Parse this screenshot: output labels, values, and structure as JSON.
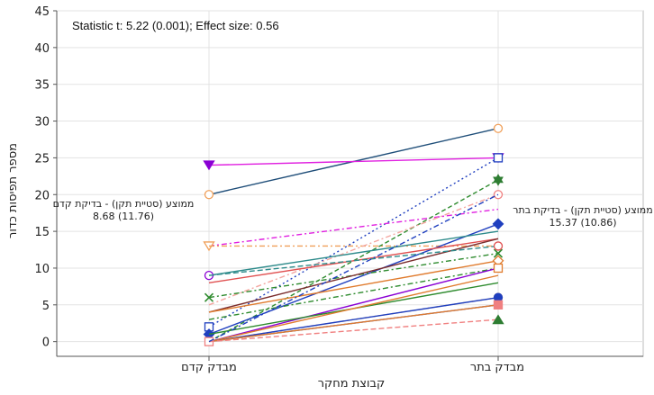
{
  "chart_data": {
    "type": "line",
    "annotation_top": "Statistic t: 5.22 (0.001); Effect size: 0.56",
    "xlabel": "קבוצת מחקר",
    "ylabel": "מספר תפיסות כדור",
    "categories": [
      "מבדק קדם",
      "מבדק בתר"
    ],
    "ylim": [
      -2,
      45
    ],
    "yticks": [
      0,
      5,
      10,
      15,
      20,
      25,
      30,
      35,
      40,
      45
    ],
    "grid": true,
    "left_summary": {
      "label": "ממוצע (סטיית תקן) - בדיקת קדם",
      "value": "8.68 (11.76)"
    },
    "right_summary": {
      "label": "ממוצע (סטיית תקן) - בדיקת בתר",
      "value": "15.37 (10.86)"
    },
    "series": [
      {
        "values": [
          20,
          29
        ],
        "color": "#1f4e79",
        "dash": "",
        "marker_pre": "circle-open",
        "marker_post": "circle-open",
        "marker_color": "#f0a05a"
      },
      {
        "values": [
          24,
          25
        ],
        "color": "#e020e0",
        "dash": "",
        "marker_pre": "tri-down",
        "marker_post": "tri-down-open",
        "marker_color": "#8a00d4"
      },
      {
        "values": [
          2,
          25
        ],
        "color": "#1f3fbf",
        "dash": "2,3",
        "marker_pre": "square-open",
        "marker_post": "square-open",
        "marker_color": "#1f3fbf"
      },
      {
        "values": [
          13,
          18
        ],
        "color": "#e020e0",
        "dash": "6,3,2,3",
        "marker_pre": "tri-down-open",
        "marker_post": "none",
        "marker_color": "#f0a05a"
      },
      {
        "values": [
          13,
          13
        ],
        "color": "#f0a05a",
        "dash": "6,3,2,3",
        "marker_pre": "none",
        "marker_post": "none",
        "marker_color": "#f0a05a"
      },
      {
        "values": [
          0,
          22
        ],
        "color": "#2e8b2e",
        "dash": "5,3",
        "marker_pre": "none",
        "marker_post": "star",
        "marker_color": "#2e7d32"
      },
      {
        "values": [
          5,
          20
        ],
        "color": "#f4a6a0",
        "dash": "6,3,2,3",
        "marker_pre": "none",
        "marker_post": "circle-open",
        "marker_color": "#f08080"
      },
      {
        "values": [
          1,
          16
        ],
        "color": "#1f3fbf",
        "dash": "",
        "marker_pre": "diamond",
        "marker_post": "diamond",
        "marker_color": "#1f3fbf"
      },
      {
        "values": [
          9,
          15
        ],
        "color": "#2e8b8b",
        "dash": "",
        "marker_pre": "circle-open",
        "marker_post": "none",
        "marker_color": "#8a00d4"
      },
      {
        "values": [
          8,
          14
        ],
        "color": "#e05050",
        "dash": "",
        "marker_pre": "none",
        "marker_post": "none",
        "marker_color": "#e05050"
      },
      {
        "values": [
          6,
          12
        ],
        "color": "#2e8b2e",
        "dash": "6,3,2,3",
        "marker_pre": "x",
        "marker_post": "x",
        "marker_color": "#2e8b2e"
      },
      {
        "values": [
          4,
          14
        ],
        "color": "#7b2d2d",
        "dash": "",
        "marker_pre": "none",
        "marker_post": "none",
        "marker_color": "#7b2d2d"
      },
      {
        "values": [
          9,
          13
        ],
        "color": "#2e8b8b",
        "dash": "6,3",
        "marker_pre": "none",
        "marker_post": "circle-open",
        "marker_color": "#e05050"
      },
      {
        "values": [
          4,
          11
        ],
        "color": "#e07b2d",
        "dash": "",
        "marker_pre": "none",
        "marker_post": "diamond-open",
        "marker_color": "#e07b2d"
      },
      {
        "values": [
          3,
          10
        ],
        "color": "#2e8b2e",
        "dash": "6,3,2,3",
        "marker_pre": "none",
        "marker_post": "none",
        "marker_color": "#2e8b2e"
      },
      {
        "values": [
          0,
          10
        ],
        "color": "#8a00d4",
        "dash": "",
        "marker_pre": "none",
        "marker_post": "square-open",
        "marker_color": "#e07b2d"
      },
      {
        "values": [
          1,
          8
        ],
        "color": "#2e8b2e",
        "dash": "",
        "marker_pre": "none",
        "marker_post": "none",
        "marker_color": "#2e8b2e"
      },
      {
        "values": [
          0,
          9
        ],
        "color": "#e07b2d",
        "dash": "",
        "marker_pre": "none",
        "marker_post": "none",
        "marker_color": "#e07b2d"
      },
      {
        "values": [
          0,
          6
        ],
        "color": "#f0a05a",
        "dash": "2,3",
        "marker_pre": "none",
        "marker_post": "circle-open",
        "marker_color": "#f0a05a"
      },
      {
        "values": [
          0,
          6
        ],
        "color": "#1f3fbf",
        "dash": "",
        "marker_pre": "none",
        "marker_post": "circle",
        "marker_color": "#1f3fbf"
      },
      {
        "values": [
          0,
          5
        ],
        "color": "#1f3fbf",
        "dash": "",
        "marker_pre": "none",
        "marker_post": "none",
        "marker_color": "#1f3fbf"
      },
      {
        "values": [
          0,
          5
        ],
        "color": "#e07b2d",
        "dash": "",
        "marker_pre": "square-open",
        "marker_post": "square",
        "marker_color": "#f08080"
      },
      {
        "values": [
          0,
          3
        ],
        "color": "#f08080",
        "dash": "6,3",
        "marker_pre": "none",
        "marker_post": "tri-up",
        "marker_color": "#2e7d32"
      },
      {
        "values": [
          0,
          20
        ],
        "color": "#1f3fbf",
        "dash": "6,3,2,3",
        "marker_pre": "none",
        "marker_post": "none",
        "marker_color": "#1f3fbf"
      }
    ]
  }
}
